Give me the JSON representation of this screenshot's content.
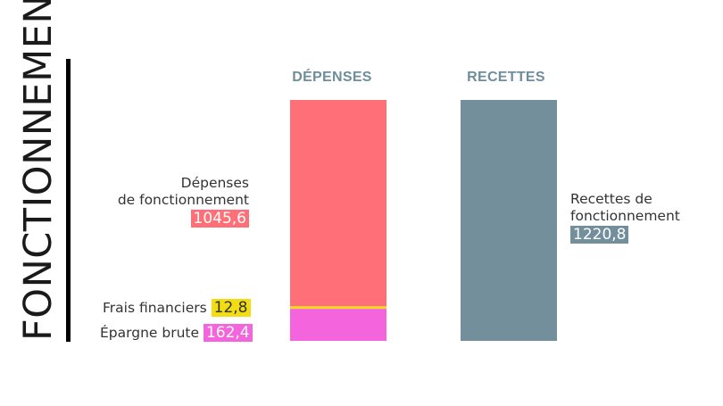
{
  "side_title": "FONCTIONNEMENT",
  "chart_data": {
    "type": "bar",
    "stacked": true,
    "categories": [
      "DÉPENSES",
      "RECETTES"
    ],
    "series": [
      {
        "name": "Épargne brute",
        "values": [
          162.4,
          0
        ],
        "color": "#f464dd",
        "label": "Épargne brute",
        "value_label": "162,4"
      },
      {
        "name": "Frais financiers",
        "values": [
          12.8,
          0
        ],
        "color": "#f2dd14",
        "label": "Frais financiers",
        "value_label": "12,8"
      },
      {
        "name": "Dépenses de fonctionnement",
        "values": [
          1045.6,
          0
        ],
        "color": "#fe6f77",
        "label_lines": [
          "Dépenses",
          "de fonctionnement"
        ],
        "value_label": "1045,6"
      },
      {
        "name": "Recettes de fonctionnement",
        "values": [
          0,
          1220.8
        ],
        "color": "#748f9c",
        "label_lines": [
          "Recettes de",
          "fonctionnement"
        ],
        "value_label": "1220,8"
      }
    ],
    "ylim": [
      0,
      1220.8
    ],
    "axes_visible": false,
    "grid": false,
    "legend": "none"
  },
  "text_colors": {
    "header": "#6e8e9c",
    "label": "#333333"
  }
}
